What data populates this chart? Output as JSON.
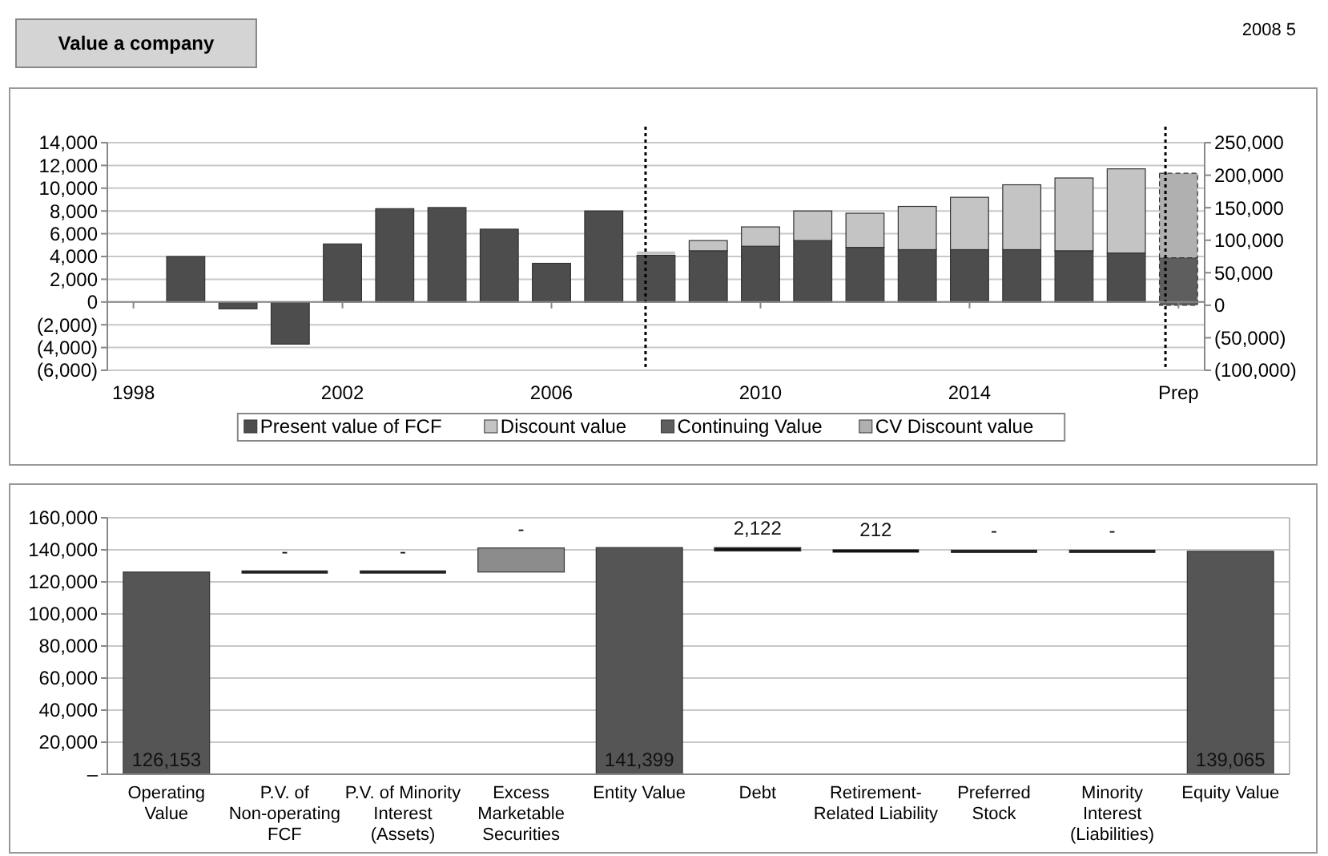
{
  "chart_data": [
    {
      "type": "bar",
      "title": "Value a company",
      "annotations": [
        "2008 5"
      ],
      "x": [
        1999,
        2000,
        2001,
        2002,
        2003,
        2004,
        2005,
        2006,
        2007,
        2008,
        2009,
        2010,
        2011,
        2012,
        2013,
        2014,
        2015,
        2016,
        2017,
        2018
      ],
      "xlim": [
        1997.5,
        2018.5
      ],
      "xticks": [
        1998,
        2002,
        2006,
        2010,
        2014,
        {
          "value": 2018,
          "label": "Prep"
        }
      ],
      "stacked": true,
      "series": [
        {
          "name": "Present value of FCF",
          "color": "#4d4d4d",
          "values": [
            4000,
            -600,
            -3700,
            5100,
            8200,
            8300,
            6400,
            3400,
            8000,
            4100,
            4500,
            4900,
            5400,
            4800,
            4600,
            4600,
            4600,
            4500,
            4300,
            null
          ]
        },
        {
          "name": "Discount value",
          "color": "#c4c4c4",
          "values": [
            null,
            null,
            null,
            null,
            null,
            null,
            null,
            null,
            null,
            200,
            900,
            1700,
            2600,
            3000,
            3800,
            4600,
            5700,
            6400,
            7400,
            null
          ]
        },
        {
          "name": "Continuing Value",
          "color": "#5e5e5e",
          "axis": "y2",
          "values": [
            null,
            null,
            null,
            null,
            null,
            null,
            null,
            null,
            null,
            null,
            null,
            null,
            null,
            null,
            null,
            null,
            null,
            null,
            null,
            73000
          ]
        },
        {
          "name": "CV Discount value",
          "color": "#b0b0b0",
          "axis": "y2",
          "values": [
            null,
            null,
            null,
            null,
            null,
            null,
            null,
            null,
            null,
            null,
            null,
            null,
            null,
            null,
            null,
            null,
            null,
            null,
            null,
            130000
          ]
        }
      ],
      "ylim": [
        -6000,
        14000
      ],
      "yticks": [
        {
          "value": -6000,
          "label": "(6,000)"
        },
        {
          "value": -4000,
          "label": "(4,000)"
        },
        {
          "value": -2000,
          "label": "(2,000)"
        },
        {
          "value": 0,
          "label": "0"
        },
        {
          "value": 2000,
          "label": "2,000"
        },
        {
          "value": 4000,
          "label": "4,000"
        },
        {
          "value": 6000,
          "label": "6,000"
        },
        {
          "value": 8000,
          "label": "8,000"
        },
        {
          "value": 10000,
          "label": "10,000"
        },
        {
          "value": 12000,
          "label": "12,000"
        },
        {
          "value": 14000,
          "label": "14,000"
        }
      ],
      "y2lim": [
        -100000,
        250000
      ],
      "y2ticks": [
        {
          "value": -100000,
          "label": "(100,000)"
        },
        {
          "value": -50000,
          "label": "(50,000)"
        },
        {
          "value": 0,
          "label": "0"
        },
        {
          "value": 50000,
          "label": "50,000"
        },
        {
          "value": 100000,
          "label": "100,000"
        },
        {
          "value": 150000,
          "label": "150,000"
        },
        {
          "value": 200000,
          "label": "200,000"
        },
        {
          "value": 250000,
          "label": "250,000"
        }
      ],
      "ref_lines": [
        {
          "axis": "x",
          "value": 2007.8,
          "line_style": "dotted",
          "color": "#000000"
        },
        {
          "axis": "x",
          "value": 2017.75,
          "line_style": "dotted",
          "color": "#000000"
        }
      ],
      "grid": "y",
      "legend": "bottom"
    },
    {
      "type": "bar",
      "categories": [
        "Operating\nValue",
        "P.V. of\nNon-operating\nFCF",
        "P.V. of Minority\nInterest\n(Assets)",
        "Excess\nMarketable\nSecurities",
        "Entity Value",
        "Debt",
        "Retirement-\nRelated Liability",
        "Preferred\nStock",
        "Minority\nInterest\n(Liabilities)",
        "Equity Value"
      ],
      "values": [
        126153,
        0,
        0,
        15000,
        141399,
        -2122,
        -212,
        0,
        0,
        139065
      ],
      "base": [
        0,
        126153,
        126153,
        126153,
        0,
        141399,
        139277,
        139065,
        139065,
        0
      ],
      "colors": [
        "#555555",
        "#222222",
        "#222222",
        "#8c8c8c",
        "#555555",
        "#111111",
        "#111111",
        "#222222",
        "#222222",
        "#555555"
      ],
      "value_labels": [
        "126,153",
        "-",
        "-",
        "-",
        "141,399",
        "2,122",
        "212",
        "-",
        "-",
        "139,065"
      ],
      "ylim": [
        0,
        160000
      ],
      "yticks": [
        {
          "value": 0,
          "label": "–"
        },
        {
          "value": 20000,
          "label": "20,000"
        },
        {
          "value": 40000,
          "label": "40,000"
        },
        {
          "value": 60000,
          "label": "60,000"
        },
        {
          "value": 80000,
          "label": "80,000"
        },
        {
          "value": 100000,
          "label": "100,000"
        },
        {
          "value": 120000,
          "label": "120,000"
        },
        {
          "value": 140000,
          "label": "140,000"
        },
        {
          "value": 160000,
          "label": "160,000"
        }
      ],
      "grid": "y"
    }
  ]
}
